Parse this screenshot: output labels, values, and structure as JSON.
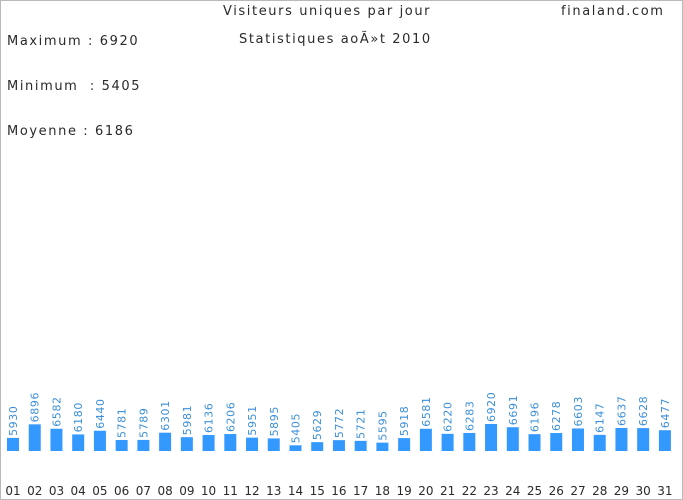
{
  "header": {
    "stats": [
      {
        "label": "Maximum",
        "value": "6920"
      },
      {
        "label": "Minimum",
        "value": "5405"
      },
      {
        "label": "Moyenne",
        "value": "6186"
      }
    ],
    "site": "finaland.com"
  },
  "colors": {
    "bar": "#3399ff",
    "value_label": "#3b8fd9",
    "text": "#2a2a2a",
    "border": "#b9b9b9"
  },
  "chart_data": {
    "type": "bar",
    "title": "Visiteurs uniques par jour",
    "subtitle": "Statistiques aoÃ»t 2010",
    "xlabel": "",
    "ylabel": "",
    "grid": false,
    "ylim": [
      0,
      6920
    ],
    "categories": [
      "01",
      "02",
      "03",
      "04",
      "05",
      "06",
      "07",
      "08",
      "09",
      "10",
      "11",
      "12",
      "13",
      "14",
      "15",
      "16",
      "17",
      "18",
      "19",
      "20",
      "21",
      "22",
      "23",
      "24",
      "25",
      "26",
      "27",
      "28",
      "29",
      "30",
      "31"
    ],
    "values": [
      5930,
      6896,
      6582,
      6180,
      6440,
      5781,
      5789,
      6301,
      5981,
      6136,
      6206,
      5951,
      5895,
      5405,
      5629,
      5772,
      5721,
      5595,
      5918,
      6581,
      6220,
      6283,
      6920,
      6691,
      6196,
      6278,
      6603,
      6147,
      6637,
      6628,
      6477
    ]
  }
}
